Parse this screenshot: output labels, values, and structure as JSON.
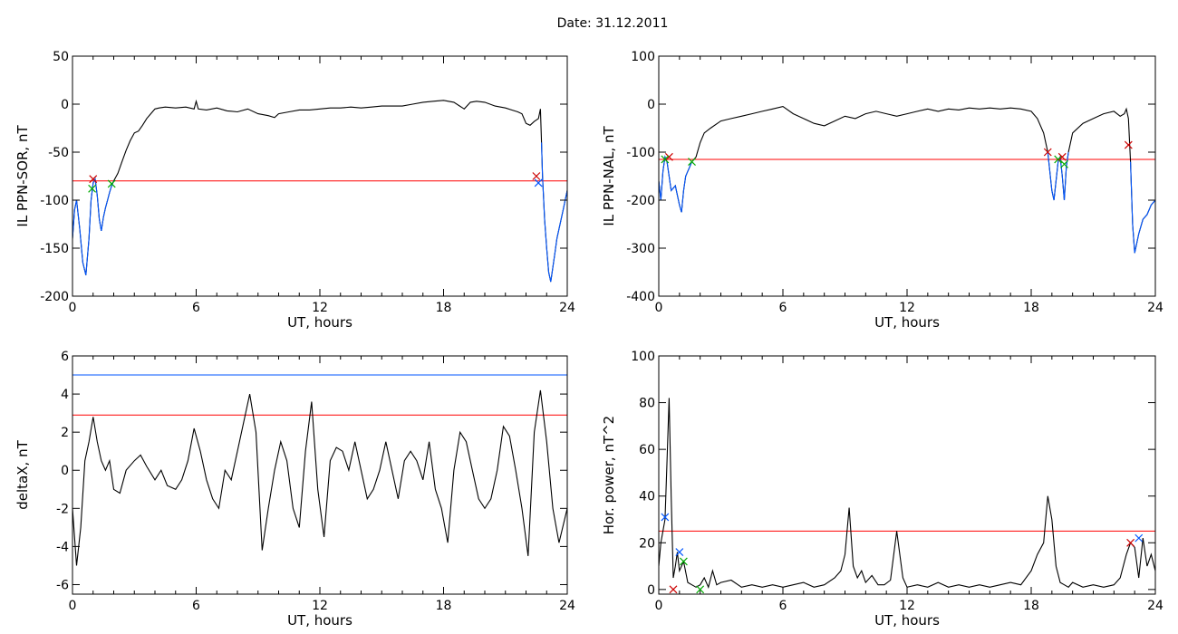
{
  "title": "Date:  31.12.2011",
  "chart_data": [
    {
      "id": "sor",
      "type": "line",
      "ylabel": "IL PPN-SOR, nT",
      "xlabel": "UT, hours",
      "xlim": [
        0,
        24
      ],
      "ylim": [
        -200,
        50
      ],
      "xticks": [
        0,
        6,
        12,
        18,
        24
      ],
      "yticks": [
        50,
        0,
        -50,
        -100,
        -150,
        -200
      ],
      "thresholds": [
        {
          "value": -80,
          "color": "#ff0000"
        }
      ],
      "series": [
        {
          "color": "#000000",
          "x": [
            0,
            0.1,
            0.2,
            0.35,
            0.5,
            0.65,
            0.8,
            0.9,
            1.0,
            1.1,
            1.2,
            1.3,
            1.4,
            1.5,
            1.6,
            1.7,
            1.8,
            1.9,
            2.0,
            2.2,
            2.4,
            2.6,
            2.8,
            3.0,
            3.2,
            3.4,
            3.6,
            3.8,
            4.0,
            4.2,
            4.5,
            5.0,
            5.5,
            5.9,
            6.0,
            6.1,
            6.5,
            7,
            7.5,
            8,
            8.5,
            9,
            9.5,
            9.8,
            10,
            10.5,
            11,
            11.5,
            12,
            12.5,
            13,
            13.5,
            14,
            14.5,
            15,
            15.5,
            16,
            16.5,
            17,
            17.5,
            18,
            18.5,
            19,
            19.3,
            19.6,
            20,
            20.5,
            21,
            21.3,
            21.6,
            21.8,
            22.0,
            22.2,
            22.4,
            22.6,
            22.7,
            22.75,
            22.8,
            22.9,
            23.0,
            23.1,
            23.2,
            23.3,
            23.4,
            23.5,
            23.6,
            23.7,
            23.8,
            23.9,
            24.0
          ],
          "y": [
            -140,
            -110,
            -100,
            -130,
            -165,
            -178,
            -140,
            -100,
            -82,
            -78,
            -95,
            -120,
            -132,
            -118,
            -108,
            -100,
            -92,
            -85,
            -80,
            -72,
            -60,
            -48,
            -38,
            -30,
            -28,
            -22,
            -15,
            -10,
            -5,
            -4,
            -3,
            -4,
            -3,
            -5,
            3,
            -5,
            -6,
            -4,
            -7,
            -8,
            -5,
            -10,
            -12,
            -14,
            -10,
            -8,
            -6,
            -6,
            -5,
            -4,
            -4,
            -3,
            -4,
            -3,
            -2,
            -2,
            -2,
            0,
            2,
            3,
            4,
            2,
            -5,
            2,
            3,
            2,
            -2,
            -4,
            -6,
            -8,
            -10,
            -20,
            -22,
            -18,
            -15,
            -5,
            -40,
            -75,
            -120,
            -150,
            -175,
            -185,
            -170,
            -155,
            -140,
            -130,
            -120,
            -110,
            -100,
            -90
          ]
        },
        {
          "color": "#0055ff",
          "x": [
            0,
            0.1,
            0.2,
            0.35,
            0.5,
            0.65,
            0.8,
            0.9,
            1.0,
            1.1,
            1.2,
            1.3,
            1.4,
            1.5,
            1.6,
            1.7,
            1.8,
            1.9,
            2.0
          ],
          "y": [
            -140,
            -110,
            -100,
            -130,
            -165,
            -178,
            -140,
            -100,
            -82,
            -78,
            -95,
            -120,
            -132,
            -118,
            -108,
            -100,
            -92,
            -85,
            -80
          ]
        },
        {
          "color": "#0055ff",
          "x": [
            22.75,
            22.8,
            22.9,
            23.0,
            23.1,
            23.2,
            23.3,
            23.4,
            23.5,
            23.6,
            23.7,
            23.8,
            23.9,
            24.0
          ],
          "y": [
            -40,
            -75,
            -120,
            -150,
            -175,
            -185,
            -170,
            -155,
            -140,
            -130,
            -120,
            -110,
            -100,
            -90
          ]
        }
      ],
      "markers": [
        {
          "x": 1.0,
          "y": -78,
          "color": "#cc0000"
        },
        {
          "x": 0.95,
          "y": -88,
          "color": "#00aa00"
        },
        {
          "x": 1.9,
          "y": -83,
          "color": "#00aa00"
        },
        {
          "x": 22.5,
          "y": -75,
          "color": "#cc0000"
        },
        {
          "x": 22.6,
          "y": -82,
          "color": "#0055ff"
        }
      ]
    },
    {
      "id": "nal",
      "type": "line",
      "ylabel": "IL PPN-NAL, nT",
      "xlabel": "UT, hours",
      "xlim": [
        0,
        24
      ],
      "ylim": [
        -400,
        100
      ],
      "xticks": [
        0,
        6,
        12,
        18,
        24
      ],
      "yticks": [
        100,
        0,
        -100,
        -200,
        -300,
        -400
      ],
      "thresholds": [
        {
          "value": -115,
          "color": "#ff0000"
        }
      ],
      "series": [
        {
          "color": "#000000",
          "x": [
            0,
            0.1,
            0.2,
            0.3,
            0.4,
            0.5,
            0.6,
            0.8,
            1.0,
            1.1,
            1.2,
            1.3,
            1.4,
            1.5,
            1.6,
            1.8,
            2.0,
            2.2,
            2.5,
            3,
            3.5,
            4,
            4.5,
            5,
            5.5,
            6,
            6.5,
            7,
            7.5,
            8,
            8.5,
            9,
            9.5,
            10,
            10.5,
            11,
            11.5,
            12,
            12.5,
            13,
            13.5,
            14,
            14.5,
            15,
            15.5,
            16,
            16.5,
            17,
            17.5,
            18,
            18.3,
            18.6,
            18.8,
            19.0,
            19.1,
            19.2,
            19.3,
            19.4,
            19.5,
            19.6,
            19.7,
            19.8,
            20,
            20.5,
            21,
            21.5,
            22,
            22.3,
            22.5,
            22.6,
            22.7,
            22.8,
            22.9,
            23.0,
            23.2,
            23.4,
            23.6,
            23.8,
            24.0
          ],
          "y": [
            -160,
            -200,
            -140,
            -110,
            -120,
            -150,
            -180,
            -170,
            -210,
            -225,
            -180,
            -150,
            -140,
            -130,
            -120,
            -110,
            -80,
            -60,
            -50,
            -35,
            -30,
            -25,
            -20,
            -15,
            -10,
            -5,
            -20,
            -30,
            -40,
            -45,
            -35,
            -25,
            -30,
            -20,
            -15,
            -20,
            -25,
            -20,
            -15,
            -10,
            -15,
            -10,
            -12,
            -8,
            -10,
            -8,
            -10,
            -8,
            -10,
            -15,
            -30,
            -60,
            -100,
            -180,
            -200,
            -160,
            -120,
            -110,
            -150,
            -200,
            -130,
            -100,
            -60,
            -40,
            -30,
            -20,
            -15,
            -25,
            -20,
            -10,
            -30,
            -120,
            -250,
            -310,
            -270,
            -240,
            -230,
            -210,
            -200
          ]
        },
        {
          "color": "#0055ff",
          "x": [
            0,
            0.1,
            0.2,
            0.3,
            0.4,
            0.5,
            0.6,
            0.8,
            1.0,
            1.1,
            1.2,
            1.3,
            1.4,
            1.5,
            1.6
          ],
          "y": [
            -160,
            -200,
            -140,
            -110,
            -120,
            -150,
            -180,
            -170,
            -210,
            -225,
            -180,
            -150,
            -140,
            -130,
            -120
          ]
        },
        {
          "color": "#0055ff",
          "x": [
            18.8,
            19.0,
            19.1,
            19.2,
            19.3,
            19.4,
            19.5,
            19.6,
            19.7,
            19.8
          ],
          "y": [
            -100,
            -180,
            -200,
            -160,
            -120,
            -110,
            -150,
            -200,
            -130,
            -100
          ]
        },
        {
          "color": "#0055ff",
          "x": [
            22.8,
            22.9,
            23.0,
            23.2,
            23.4,
            23.6,
            23.8,
            24.0
          ],
          "y": [
            -120,
            -250,
            -310,
            -270,
            -240,
            -230,
            -210,
            -200
          ]
        }
      ],
      "markers": [
        {
          "x": 0.5,
          "y": -110,
          "color": "#cc0000"
        },
        {
          "x": 0.3,
          "y": -115,
          "color": "#00aa00"
        },
        {
          "x": 1.6,
          "y": -120,
          "color": "#00aa00"
        },
        {
          "x": 18.8,
          "y": -100,
          "color": "#cc0000"
        },
        {
          "x": 19.3,
          "y": -115,
          "color": "#00aa00"
        },
        {
          "x": 19.6,
          "y": -125,
          "color": "#00aa00"
        },
        {
          "x": 19.5,
          "y": -110,
          "color": "#cc0000"
        },
        {
          "x": 22.7,
          "y": -85,
          "color": "#cc0000"
        }
      ]
    },
    {
      "id": "deltax",
      "type": "line",
      "ylabel": "deltaX, nT",
      "xlabel": "UT, hours",
      "xlim": [
        0,
        24
      ],
      "ylim": [
        -6.5,
        6
      ],
      "xticks": [
        0,
        6,
        12,
        18,
        24
      ],
      "yticks": [
        6,
        4,
        2,
        0,
        -2,
        -4,
        -6
      ],
      "thresholds": [
        {
          "value": 5.0,
          "color": "#0055ff"
        },
        {
          "value": 2.9,
          "color": "#ff0000"
        }
      ],
      "series": [
        {
          "color": "#000000",
          "x": [
            0,
            0.2,
            0.4,
            0.6,
            0.8,
            1.0,
            1.2,
            1.4,
            1.6,
            1.8,
            2.0,
            2.3,
            2.6,
            3,
            3.3,
            3.6,
            4,
            4.3,
            4.6,
            5,
            5.3,
            5.6,
            5.9,
            6.2,
            6.5,
            6.8,
            7.1,
            7.4,
            7.7,
            8.0,
            8.3,
            8.6,
            8.9,
            9.2,
            9.5,
            9.8,
            10.1,
            10.4,
            10.7,
            11.0,
            11.3,
            11.6,
            11.9,
            12.2,
            12.5,
            12.8,
            13.1,
            13.4,
            13.7,
            14.0,
            14.3,
            14.6,
            14.9,
            15.2,
            15.5,
            15.8,
            16.1,
            16.4,
            16.7,
            17.0,
            17.3,
            17.6,
            17.9,
            18.2,
            18.5,
            18.8,
            19.1,
            19.4,
            19.7,
            20.0,
            20.3,
            20.6,
            20.9,
            21.2,
            21.5,
            21.8,
            22.1,
            22.4,
            22.7,
            23.0,
            23.3,
            23.6,
            24.0
          ],
          "y": [
            -2,
            -5,
            -3,
            0.5,
            1.5,
            2.8,
            1.5,
            0.5,
            0,
            0.5,
            -1,
            -1.2,
            0,
            0.5,
            0.8,
            0.2,
            -0.5,
            0,
            -0.8,
            -1,
            -0.5,
            0.5,
            2.2,
            1,
            -0.5,
            -1.5,
            -2,
            0,
            -0.5,
            1,
            2.5,
            4,
            2,
            -4.2,
            -2,
            0,
            1.5,
            0.5,
            -2,
            -3,
            1,
            3.6,
            -1,
            -3.5,
            0.5,
            1.2,
            1,
            0,
            1.5,
            0,
            -1.5,
            -1,
            0,
            1.5,
            0,
            -1.5,
            0.5,
            1,
            0.5,
            -0.5,
            1.5,
            -1,
            -2,
            -3.8,
            0,
            2,
            1.5,
            0,
            -1.5,
            -2,
            -1.5,
            0,
            2.3,
            1.8,
            0,
            -2,
            -4.5,
            2,
            4.2,
            1.5,
            -2,
            -3.8,
            -2
          ]
        }
      ],
      "markers": []
    },
    {
      "id": "power",
      "type": "line",
      "ylabel": "Hor. power, nT^2",
      "xlabel": "UT, hours",
      "xlim": [
        0,
        24
      ],
      "ylim": [
        -2,
        100
      ],
      "xticks": [
        0,
        6,
        12,
        18,
        24
      ],
      "yticks": [
        100,
        80,
        60,
        40,
        20,
        0
      ],
      "thresholds": [
        {
          "value": 25,
          "color": "#ff0000"
        }
      ],
      "series": [
        {
          "color": "#000000",
          "x": [
            0,
            0.1,
            0.2,
            0.3,
            0.4,
            0.5,
            0.6,
            0.7,
            0.8,
            0.9,
            1.0,
            1.2,
            1.4,
            1.6,
            1.8,
            2.0,
            2.2,
            2.4,
            2.6,
            2.8,
            3,
            3.5,
            4,
            4.5,
            5,
            5.5,
            6,
            6.5,
            7,
            7.5,
            8,
            8.5,
            8.8,
            9.0,
            9.2,
            9.4,
            9.6,
            9.8,
            10,
            10.3,
            10.6,
            10.9,
            11.2,
            11.5,
            11.8,
            12,
            12.5,
            13,
            13.5,
            14,
            14.5,
            15,
            15.5,
            16,
            16.5,
            17,
            17.5,
            18,
            18.3,
            18.6,
            18.8,
            19.0,
            19.2,
            19.4,
            19.6,
            19.8,
            20,
            20.5,
            21,
            21.5,
            22,
            22.3,
            22.6,
            22.8,
            23.0,
            23.2,
            23.4,
            23.6,
            23.8,
            24.0
          ],
          "y": [
            10,
            20,
            25,
            30,
            55,
            82,
            40,
            5,
            10,
            16,
            8,
            12,
            3,
            2,
            1,
            2,
            5,
            1,
            8,
            2,
            3,
            4,
            1,
            2,
            1,
            2,
            1,
            2,
            3,
            1,
            2,
            5,
            8,
            15,
            35,
            10,
            5,
            8,
            3,
            6,
            2,
            2,
            4,
            25,
            5,
            1,
            2,
            1,
            3,
            1,
            2,
            1,
            2,
            1,
            2,
            3,
            2,
            8,
            15,
            20,
            40,
            30,
            10,
            3,
            2,
            1,
            3,
            1,
            2,
            1,
            2,
            5,
            15,
            20,
            18,
            5,
            22,
            10,
            15,
            8
          ]
        }
      ],
      "markers": [
        {
          "x": 0.3,
          "y": 31,
          "color": "#0055ff"
        },
        {
          "x": 0.7,
          "y": 0,
          "color": "#cc0000"
        },
        {
          "x": 1.0,
          "y": 16,
          "color": "#0055ff"
        },
        {
          "x": 1.2,
          "y": 12,
          "color": "#00aa00"
        },
        {
          "x": 2.0,
          "y": 0,
          "color": "#00aa00"
        },
        {
          "x": 22.8,
          "y": 20,
          "color": "#cc0000"
        },
        {
          "x": 23.2,
          "y": 22,
          "color": "#0055ff"
        }
      ]
    }
  ]
}
